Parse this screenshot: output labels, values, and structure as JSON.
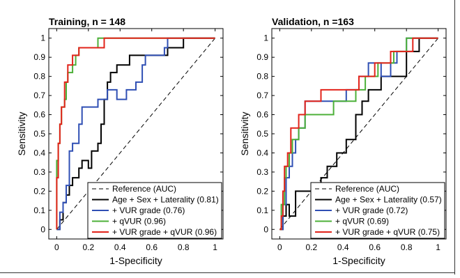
{
  "chart_data": [
    {
      "type": "line",
      "title": "Training, n = 148",
      "xlabel": "1-Specificity",
      "ylabel": "Sensitivity",
      "xlim": [
        -0.05,
        1.05
      ],
      "ylim": [
        -0.05,
        1.05
      ],
      "xticks": [
        "0",
        "0.2",
        "0.4",
        "0.6",
        "0.8",
        "1"
      ],
      "yticks": [
        "0",
        "0.1",
        "0.2",
        "0.3",
        "0.4",
        "0.5",
        "0.6",
        "0.7",
        "0.8",
        "0.9",
        "1"
      ],
      "legend_position": "bottom-right",
      "legend_header": "Reference (AUC)",
      "series": [
        {
          "name": "Age + Sex + Laterality (0.81)",
          "color": "#000000",
          "x": [
            0,
            0.02,
            0.02,
            0.04,
            0.04,
            0.06,
            0.06,
            0.08,
            0.08,
            0.1,
            0.1,
            0.14,
            0.14,
            0.16,
            0.16,
            0.2,
            0.2,
            0.22,
            0.22,
            0.26,
            0.26,
            0.28,
            0.28,
            0.3,
            0.3,
            0.32,
            0.32,
            0.34,
            0.34,
            0.38,
            0.38,
            0.46,
            0.46,
            0.5,
            0.5,
            0.7,
            0.7,
            0.8,
            0.8,
            1
          ],
          "y": [
            0,
            0,
            0.05,
            0.05,
            0.14,
            0.14,
            0.18,
            0.18,
            0.23,
            0.23,
            0.27,
            0.27,
            0.32,
            0.32,
            0.36,
            0.36,
            0.32,
            0.32,
            0.41,
            0.41,
            0.45,
            0.45,
            0.55,
            0.55,
            0.68,
            0.68,
            0.77,
            0.77,
            0.82,
            0.82,
            0.86,
            0.86,
            0.91,
            0.91,
            0.91,
            0.91,
            0.95,
            0.95,
            1,
            1
          ]
        },
        {
          "name": "+ VUR grade (0.76)",
          "color": "#2f4fb4",
          "x": [
            0,
            0.02,
            0.02,
            0.04,
            0.04,
            0.06,
            0.06,
            0.08,
            0.08,
            0.1,
            0.1,
            0.14,
            0.14,
            0.16,
            0.16,
            0.26,
            0.26,
            0.32,
            0.32,
            0.38,
            0.38,
            0.44,
            0.44,
            0.5,
            0.5,
            0.54,
            0.54,
            0.56,
            0.56,
            0.68,
            0.68,
            0.7,
            0.7,
            1
          ],
          "y": [
            0,
            0,
            0.09,
            0.09,
            0.14,
            0.14,
            0.23,
            0.23,
            0.41,
            0.41,
            0.45,
            0.45,
            0.55,
            0.55,
            0.64,
            0.64,
            0.68,
            0.68,
            0.73,
            0.73,
            0.68,
            0.68,
            0.73,
            0.73,
            0.77,
            0.77,
            0.86,
            0.86,
            0.91,
            0.91,
            0.95,
            0.95,
            1,
            1
          ]
        },
        {
          "name": "+ qVUR (0.96)",
          "color": "#4cb038",
          "x": [
            0,
            0,
            0.01,
            0.01,
            0.02,
            0.02,
            0.03,
            0.03,
            0.05,
            0.05,
            0.06,
            0.06,
            0.07,
            0.07,
            0.1,
            0.1,
            0.12,
            0.12,
            0.14,
            0.14,
            0.26,
            0.26,
            1
          ],
          "y": [
            0,
            0.36,
            0.36,
            0.45,
            0.45,
            0.55,
            0.55,
            0.64,
            0.64,
            0.68,
            0.68,
            0.77,
            0.77,
            0.82,
            0.82,
            0.86,
            0.86,
            0.91,
            0.91,
            0.95,
            0.95,
            1,
            1
          ]
        },
        {
          "name": "+ VUR grade + qVUR (0.96)",
          "color": "#e2231a",
          "x": [
            0,
            0,
            0.01,
            0.01,
            0.02,
            0.02,
            0.03,
            0.03,
            0.05,
            0.05,
            0.07,
            0.07,
            0.1,
            0.1,
            0.12,
            0.12,
            0.14,
            0.14,
            0.3,
            0.3,
            1
          ],
          "y": [
            0,
            0.27,
            0.27,
            0.45,
            0.45,
            0.55,
            0.55,
            0.64,
            0.64,
            0.77,
            0.77,
            0.86,
            0.86,
            0.91,
            0.91,
            0.91,
            0.91,
            0.95,
            0.95,
            1,
            1
          ]
        }
      ]
    },
    {
      "type": "line",
      "title": "Validation, n =163",
      "xlabel": "1-Specificity",
      "ylabel": "Sensitivity",
      "xlim": [
        -0.05,
        1.05
      ],
      "ylim": [
        -0.05,
        1.05
      ],
      "xticks": [
        "0",
        "0.2",
        "0.4",
        "0.6",
        "0.8",
        "1"
      ],
      "yticks": [
        "0",
        "0.1",
        "0.2",
        "0.3",
        "0.4",
        "0.5",
        "0.6",
        "0.7",
        "0.8",
        "0.9",
        "1"
      ],
      "legend_position": "bottom-right",
      "legend_header": "Reference (AUC)",
      "series": [
        {
          "name": "Age + Sex + Laterality (0.57)",
          "color": "#000000",
          "x": [
            0,
            0.02,
            0.02,
            0.04,
            0.04,
            0.06,
            0.06,
            0.1,
            0.1,
            0.26,
            0.26,
            0.3,
            0.3,
            0.36,
            0.36,
            0.42,
            0.42,
            0.48,
            0.48,
            0.52,
            0.52,
            0.56,
            0.56,
            0.64,
            0.64,
            0.7,
            0.7,
            0.8,
            0.8,
            0.88,
            0.88,
            1
          ],
          "y": [
            0,
            0,
            0.07,
            0.07,
            0.13,
            0.13,
            0.07,
            0.07,
            0.2,
            0.2,
            0.27,
            0.27,
            0.33,
            0.33,
            0.4,
            0.4,
            0.47,
            0.47,
            0.6,
            0.6,
            0.67,
            0.67,
            0.73,
            0.73,
            0.8,
            0.8,
            0.8,
            0.8,
            0.93,
            0.93,
            1,
            1
          ]
        },
        {
          "name": "+ VUR grade (0.72)",
          "color": "#2f4fb4",
          "x": [
            0,
            0.02,
            0.02,
            0.04,
            0.04,
            0.06,
            0.06,
            0.08,
            0.08,
            0.1,
            0.1,
            0.12,
            0.12,
            0.16,
            0.16,
            0.42,
            0.42,
            0.5,
            0.5,
            0.56,
            0.56,
            0.64,
            0.64,
            0.7,
            0.7,
            0.74,
            0.74,
            0.8,
            0.8,
            1
          ],
          "y": [
            0,
            0,
            0.13,
            0.13,
            0.27,
            0.27,
            0.33,
            0.33,
            0.4,
            0.4,
            0.47,
            0.47,
            0.53,
            0.53,
            0.67,
            0.67,
            0.73,
            0.73,
            0.8,
            0.8,
            0.87,
            0.87,
            0.8,
            0.8,
            0.87,
            0.87,
            0.93,
            0.93,
            1,
            1
          ]
        },
        {
          "name": "+ qVUR (0.69)",
          "color": "#4cb038",
          "x": [
            0,
            0.01,
            0.01,
            0.03,
            0.03,
            0.04,
            0.04,
            0.06,
            0.06,
            0.08,
            0.08,
            0.12,
            0.12,
            0.16,
            0.16,
            0.34,
            0.34,
            0.48,
            0.48,
            0.54,
            0.54,
            0.62,
            0.62,
            0.72,
            0.72,
            0.76,
            0.76,
            0.8,
            0.8,
            1
          ],
          "y": [
            0,
            0,
            0.13,
            0.13,
            0.27,
            0.27,
            0.33,
            0.33,
            0.4,
            0.4,
            0.47,
            0.47,
            0.53,
            0.53,
            0.6,
            0.6,
            0.67,
            0.67,
            0.73,
            0.73,
            0.8,
            0.8,
            0.87,
            0.87,
            0.93,
            0.93,
            0.93,
            0.93,
            1,
            1
          ]
        },
        {
          "name": "+ VUR grade + qVUR (0.75)",
          "color": "#e2231a",
          "x": [
            0,
            0.01,
            0.01,
            0.02,
            0.02,
            0.03,
            0.03,
            0.05,
            0.05,
            0.07,
            0.07,
            0.12,
            0.12,
            0.16,
            0.16,
            0.26,
            0.26,
            0.5,
            0.5,
            0.6,
            0.6,
            0.7,
            0.7,
            0.8,
            0.8,
            0.84,
            0.84,
            1
          ],
          "y": [
            0,
            0,
            0.07,
            0.07,
            0.2,
            0.2,
            0.33,
            0.33,
            0.4,
            0.4,
            0.53,
            0.53,
            0.6,
            0.6,
            0.67,
            0.67,
            0.73,
            0.73,
            0.8,
            0.8,
            0.87,
            0.87,
            0.93,
            0.93,
            0.93,
            0.93,
            1,
            1
          ]
        }
      ]
    }
  ]
}
